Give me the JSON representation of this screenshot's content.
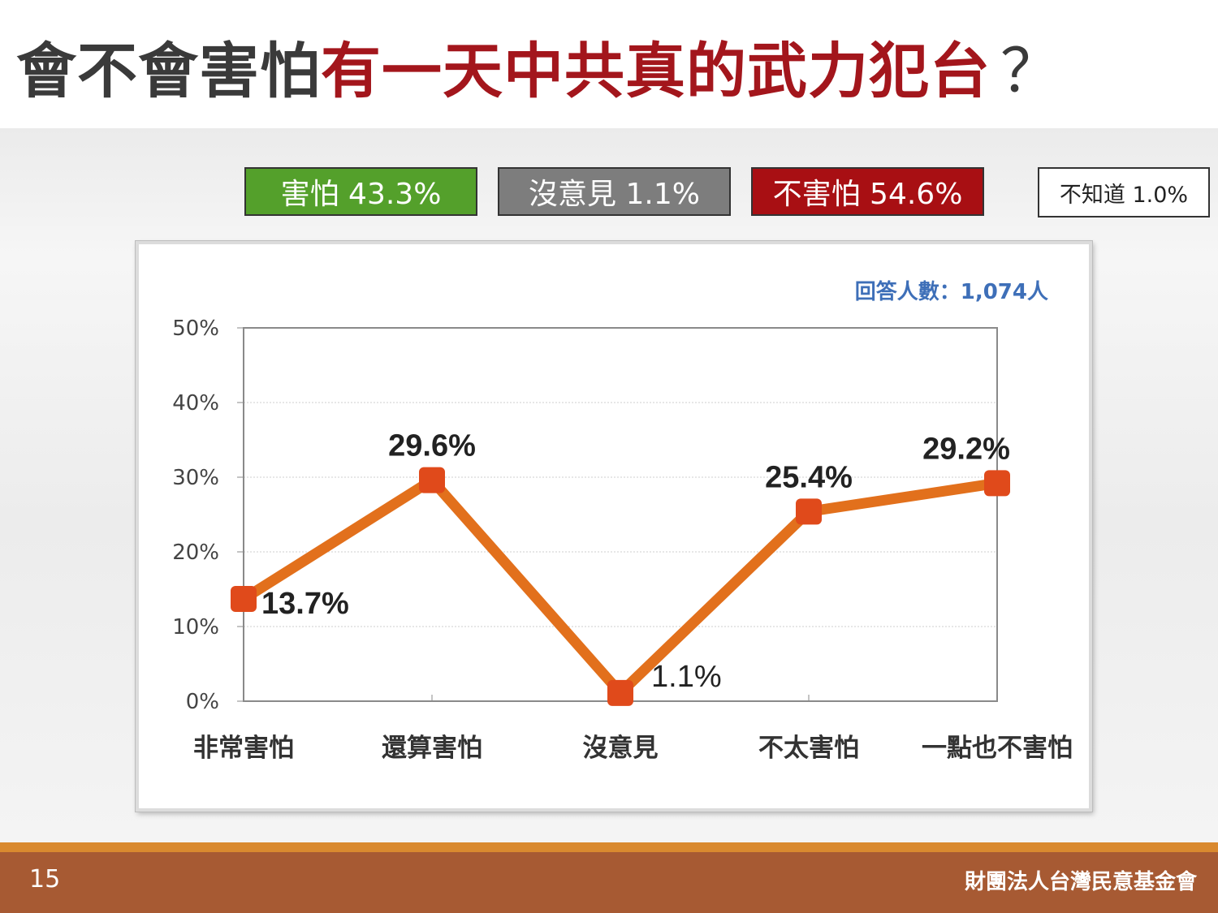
{
  "title": {
    "part1": "會不會害怕",
    "part2": "有一天中共真的武力犯台",
    "part3": "？"
  },
  "summary": {
    "afraid": "害怕 43.3%",
    "no_opinion": "沒意見 1.1%",
    "not_afraid": "不害怕 54.6%",
    "dont_know": "不知道 1.0%"
  },
  "colors": {
    "afraid": "#54a02b",
    "no_opinion": "#7d7d7d",
    "not_afraid": "#a80f13",
    "line": "#e2701c",
    "marker": "#e04a1b",
    "title_red": "#a3161c",
    "respondents": "#3e6fb8",
    "footer": "#a75a33"
  },
  "chart_data": {
    "type": "line",
    "categories": [
      "非常害怕",
      "還算害怕",
      "沒意見",
      "不太害怕",
      "一點也不害怕"
    ],
    "values": [
      13.7,
      29.6,
      1.1,
      25.4,
      29.2
    ],
    "data_labels": [
      "13.7%",
      "29.6%",
      "1.1%",
      "25.4%",
      "29.2%"
    ],
    "y_ticks": [
      "0%",
      "10%",
      "20%",
      "30%",
      "40%",
      "50%"
    ],
    "ylim": [
      0,
      50
    ],
    "grid": true,
    "legend": "none",
    "annotation": "回答人數：1,074人"
  },
  "footer": {
    "page": "15",
    "org": "財團法人台灣民意基金會"
  }
}
